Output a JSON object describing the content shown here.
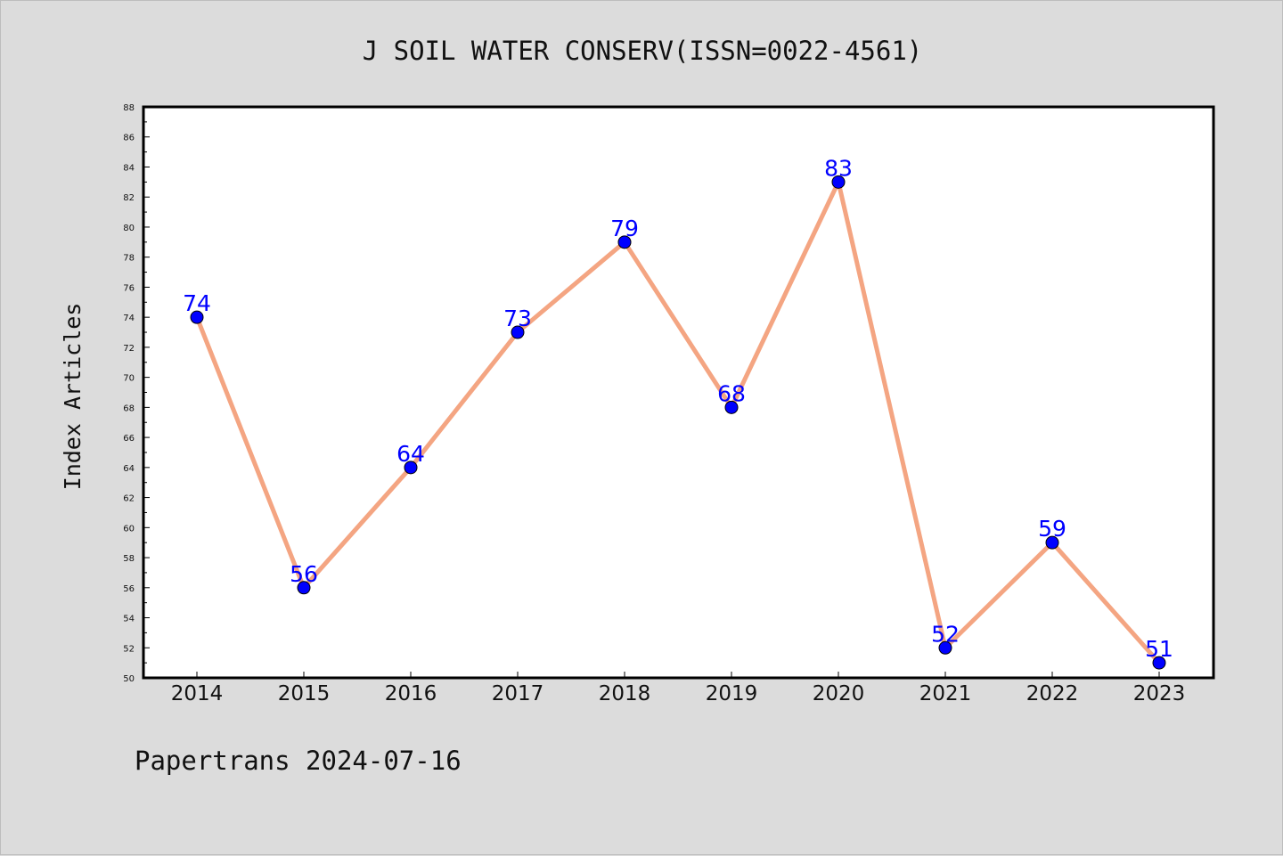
{
  "chart_data": {
    "type": "line",
    "title": "J SOIL WATER CONSERV(ISSN=0022-4561)",
    "xlabel": "",
    "ylabel": "Index Articles",
    "categories": [
      "2014",
      "2015",
      "2016",
      "2017",
      "2018",
      "2019",
      "2020",
      "2021",
      "2022",
      "2023"
    ],
    "series": [
      {
        "values": [
          74,
          56,
          64,
          73,
          79,
          68,
          83,
          52,
          59,
          51
        ]
      }
    ],
    "ylim": [
      50,
      88
    ],
    "yticks": [
      50,
      52,
      54,
      56,
      58,
      60,
      62,
      64,
      66,
      68,
      70,
      72,
      74,
      76,
      78,
      80,
      82,
      84,
      86,
      88
    ],
    "data_labels": true,
    "grid": false,
    "line_color": "#f4a582",
    "marker_color": "#0000ff",
    "label_color": "#0000ff",
    "background_color": "#dcdcdc",
    "plot_background": "#ffffff"
  },
  "footer": "Papertrans 2024-07-16"
}
